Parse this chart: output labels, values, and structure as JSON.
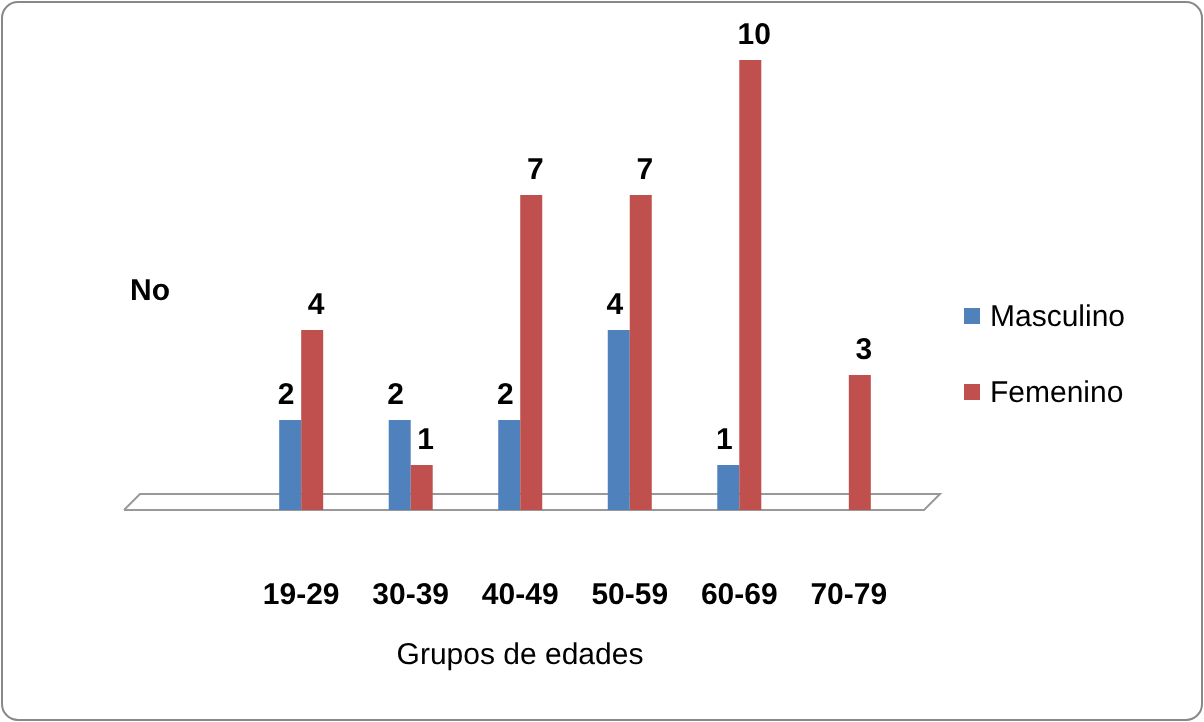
{
  "chart_data": {
    "type": "bar",
    "ylabel": "No",
    "xlabel": "Grupos de edades",
    "categories": [
      "19-29",
      "30-39",
      "40-49",
      "50-59",
      "60-69",
      "70-79"
    ],
    "series": [
      {
        "name": "Masculino",
        "color": "#4f81bd",
        "values": [
          2,
          2,
          2,
          4,
          1,
          null
        ]
      },
      {
        "name": "Femenino",
        "color": "#c0504d",
        "values": [
          4,
          1,
          7,
          7,
          10,
          3
        ]
      }
    ],
    "data_labels": true,
    "legend": "right"
  }
}
